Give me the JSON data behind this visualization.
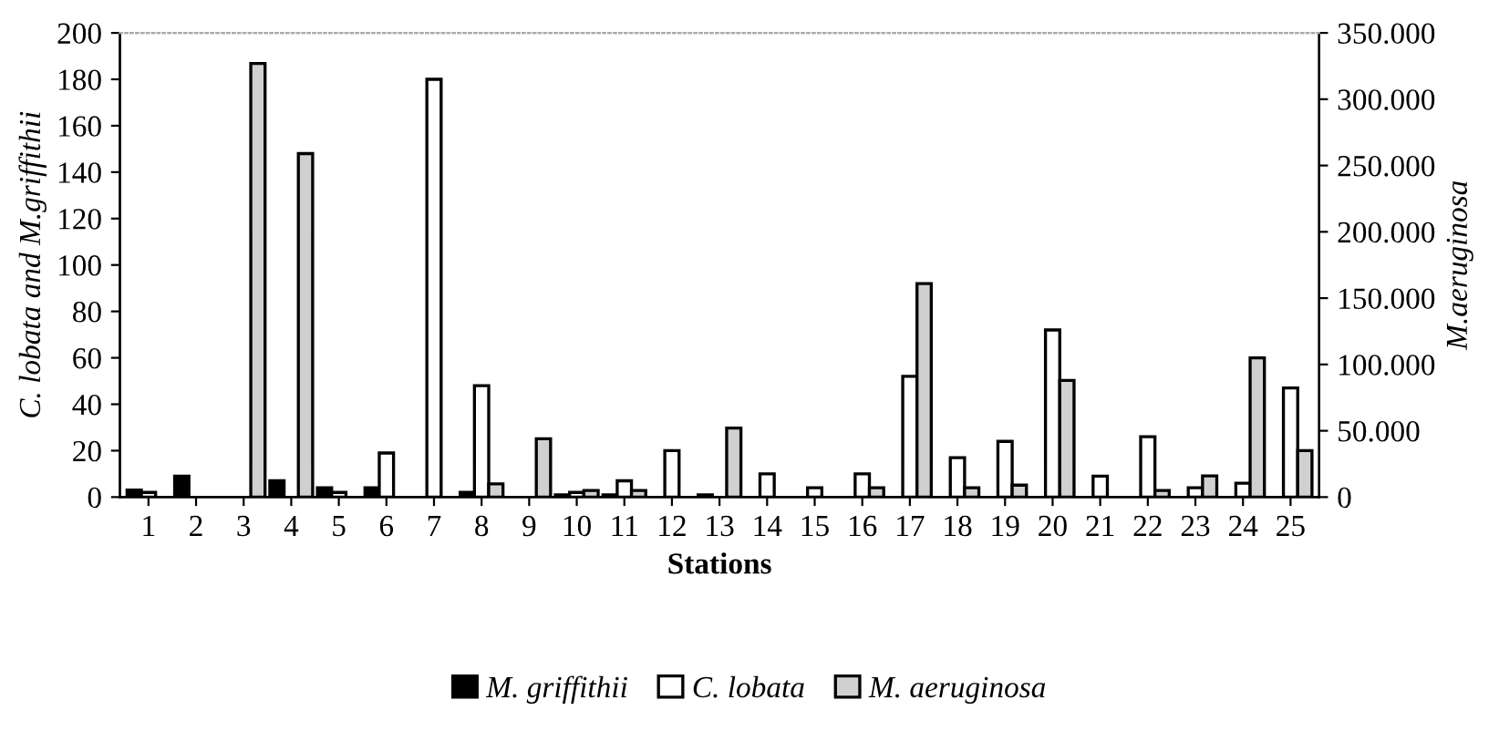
{
  "chart_data": {
    "type": "bar",
    "xlabel": "Stations",
    "ylabel": "C. lobata and M.griffithii",
    "y2label": "M.aeruginosa",
    "categories": [
      "1",
      "2",
      "3",
      "4",
      "5",
      "6",
      "7",
      "8",
      "9",
      "10",
      "11",
      "12",
      "13",
      "14",
      "15",
      "16",
      "17",
      "18",
      "19",
      "20",
      "21",
      "22",
      "23",
      "24",
      "25"
    ],
    "series": [
      {
        "name": "M. griffithii",
        "color": "#000000",
        "values": [
          3,
          9,
          null,
          7,
          4,
          4,
          null,
          2,
          null,
          1,
          1,
          null,
          1,
          null,
          null,
          null,
          null,
          null,
          null,
          null,
          null,
          null,
          null,
          null,
          null
        ]
      },
      {
        "name": "C. lobata",
        "color": "#ffffff",
        "values": [
          2,
          null,
          null,
          null,
          2,
          19,
          180,
          48,
          null,
          2,
          7,
          20,
          null,
          10,
          4,
          10,
          52,
          17,
          24,
          72,
          9,
          26,
          4,
          6,
          47
        ]
      },
      {
        "name": "M. aeruginosa",
        "color": "#d0d0d0",
        "axis": "y2",
        "values": [
          null,
          null,
          327000,
          259000,
          null,
          null,
          null,
          10000,
          44000,
          5000,
          5000,
          null,
          52000,
          null,
          null,
          7000,
          161000,
          7000,
          9000,
          88000,
          null,
          5000,
          16000,
          105000,
          35000
        ]
      }
    ],
    "ylim": [
      0,
      200
    ],
    "yticks": [
      0,
      20,
      40,
      60,
      80,
      100,
      120,
      140,
      160,
      180,
      200
    ],
    "y2lim": [
      0,
      350000
    ],
    "y2ticks": [
      {
        "value": 0,
        "label": "0"
      },
      {
        "value": 50000,
        "label": "50.000"
      },
      {
        "value": 100000,
        "label": "100.000"
      },
      {
        "value": 150000,
        "label": "150.000"
      },
      {
        "value": 200000,
        "label": "200.000"
      },
      {
        "value": 250000,
        "label": "250.000"
      },
      {
        "value": 300000,
        "label": "300.000"
      },
      {
        "value": 350000,
        "label": "350.000"
      }
    ],
    "legend": "bottom",
    "grid": false
  }
}
